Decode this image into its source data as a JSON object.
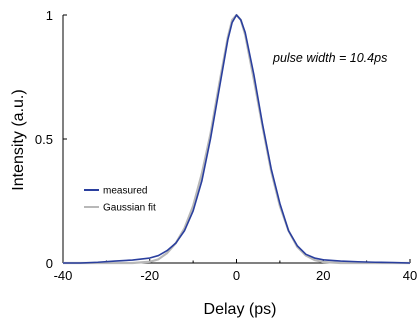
{
  "chart_data": {
    "type": "line",
    "title": "",
    "xlabel": "Delay (ps)",
    "ylabel": "Intensity (a.u.)",
    "xlim": [
      -40,
      40
    ],
    "ylim": [
      0,
      1
    ],
    "xticks": [
      -40,
      -20,
      0,
      20,
      40
    ],
    "xtick_labels": [
      "-40",
      "-20",
      "0",
      "20",
      "40"
    ],
    "yticks": [
      0,
      0.5,
      1
    ],
    "ytick_labels": [
      "0",
      "0.5",
      "1"
    ],
    "grid": false,
    "legend_position": "center-left",
    "annotation": "pulse width = 10.4ps",
    "series": [
      {
        "name": "measured",
        "color": "#2a3f9e",
        "x": [
          -40,
          -36,
          -32,
          -28,
          -24,
          -20,
          -18,
          -16,
          -14,
          -12,
          -10,
          -8,
          -6,
          -4,
          -2,
          -1,
          0,
          1,
          2,
          4,
          6,
          8,
          10,
          12,
          14,
          16,
          18,
          20,
          24,
          28,
          32,
          36,
          40
        ],
        "y": [
          0.0,
          0.0,
          0.003,
          0.008,
          0.012,
          0.02,
          0.03,
          0.05,
          0.08,
          0.13,
          0.21,
          0.33,
          0.5,
          0.7,
          0.9,
          0.97,
          1.0,
          0.98,
          0.93,
          0.76,
          0.56,
          0.38,
          0.24,
          0.13,
          0.07,
          0.035,
          0.02,
          0.013,
          0.008,
          0.005,
          0.003,
          0.002,
          0.0
        ]
      },
      {
        "name": "Gaussian fit",
        "color": "#b8b8b8",
        "x": [
          -40,
          -36,
          -32,
          -28,
          -24,
          -20,
          -18,
          -16,
          -14,
          -12,
          -10,
          -8,
          -6,
          -4,
          -2,
          -1,
          0,
          1,
          2,
          4,
          6,
          8,
          10,
          12,
          14,
          16,
          18,
          20,
          24,
          28,
          32,
          36,
          40
        ],
        "y": [
          0.0,
          0.0,
          0.0,
          0.0,
          0.0,
          0.005,
          0.015,
          0.04,
          0.08,
          0.14,
          0.23,
          0.36,
          0.52,
          0.72,
          0.91,
          0.98,
          1.0,
          0.98,
          0.92,
          0.74,
          0.55,
          0.37,
          0.23,
          0.13,
          0.065,
          0.03,
          0.012,
          0.004,
          0.0,
          0.0,
          0.0,
          0.0,
          0.0
        ]
      }
    ]
  }
}
